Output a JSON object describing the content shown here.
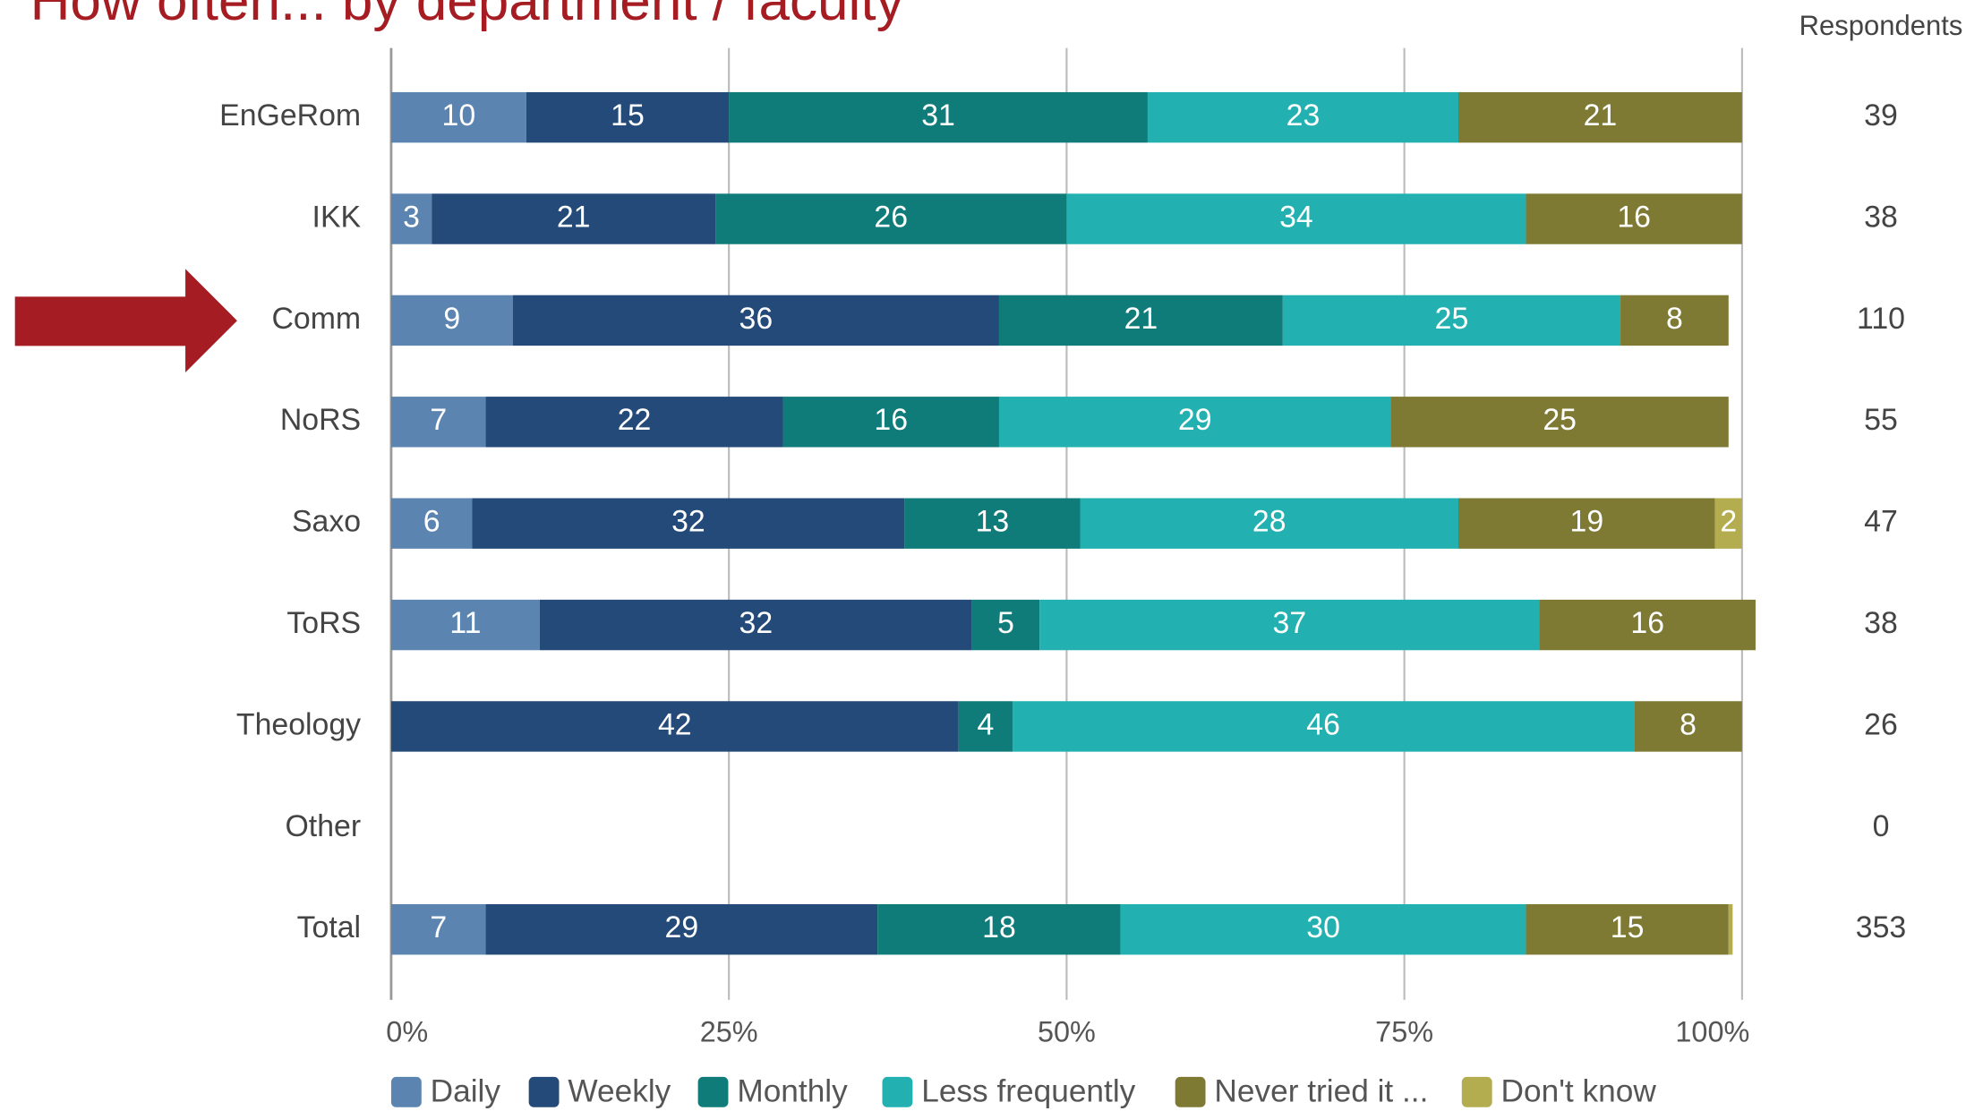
{
  "chart_data": {
    "type": "stacked-bar-horizontal",
    "title": "How often... by department / faculty",
    "categories": [
      "EnGeRom",
      "IKK",
      "Comm",
      "NoRS",
      "Saxo",
      "ToRS",
      "Theology",
      "Other",
      "Total"
    ],
    "series": [
      {
        "name": "Daily",
        "color": "#5b84b1",
        "values": [
          10,
          3,
          9,
          7,
          6,
          11,
          null,
          null,
          7
        ]
      },
      {
        "name": "Weekly",
        "color": "#234a78",
        "values": [
          15,
          21,
          36,
          22,
          32,
          32,
          42,
          null,
          29
        ]
      },
      {
        "name": "Monthly",
        "color": "#0f7c7a",
        "values": [
          31,
          26,
          21,
          16,
          13,
          5,
          4,
          null,
          18
        ]
      },
      {
        "name": "Less frequently",
        "color": "#22b0b0",
        "values": [
          23,
          34,
          25,
          29,
          28,
          37,
          46,
          null,
          30
        ]
      },
      {
        "name": "Never tried it ...",
        "color": "#7e7a33",
        "values": [
          21,
          16,
          8,
          25,
          19,
          16,
          8,
          null,
          15
        ]
      },
      {
        "name": "Don't know",
        "color": "#b3ad50",
        "values": [
          null,
          null,
          null,
          null,
          2,
          null,
          null,
          null,
          0.3
        ]
      }
    ],
    "xlim": [
      0,
      100
    ],
    "xticks": [
      {
        "value": 0,
        "label": "0%"
      },
      {
        "value": 25,
        "label": "25%"
      },
      {
        "value": 50,
        "label": "50%"
      },
      {
        "value": 75,
        "label": "75%"
      },
      {
        "value": 100,
        "label": "100%"
      }
    ],
    "grid": true,
    "respondents": {
      "label": "Respondents",
      "values": [
        39,
        38,
        110,
        55,
        47,
        38,
        26,
        0,
        353
      ]
    },
    "legend": "bottom"
  }
}
